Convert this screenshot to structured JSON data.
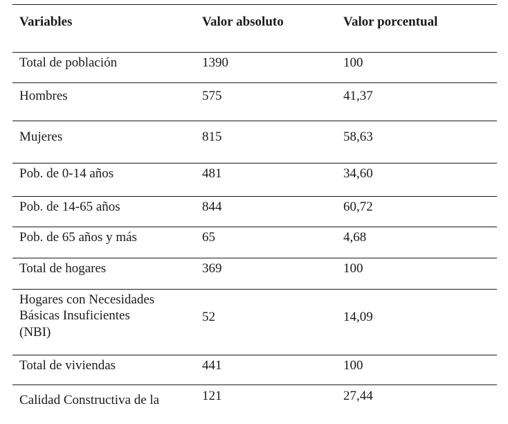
{
  "table": {
    "headers": [
      "Variables",
      "Valor absoluto",
      "Valor porcentual"
    ],
    "rows": [
      {
        "variable": "Total de población",
        "absoluto": "1390",
        "porcentual": "100"
      },
      {
        "variable": "Hombres",
        "absoluto": "575",
        "porcentual": "41,37"
      },
      {
        "variable": "Mujeres",
        "absoluto": "815",
        "porcentual": "58,63"
      },
      {
        "variable": "Pob. de 0-14 años",
        "absoluto": "481",
        "porcentual": "34,60"
      },
      {
        "variable": "Pob. de 14-65 años",
        "absoluto": "844",
        "porcentual": "60,72"
      },
      {
        "variable": "Pob. de 65 años y más",
        "absoluto": "65",
        "porcentual": "4,68"
      },
      {
        "variable": "Total de hogares",
        "absoluto": "369",
        "porcentual": "100"
      },
      {
        "variable_lines": [
          "Hogares con Necesidades",
          "Básicas Insuficientes",
          "(NBI)"
        ],
        "absoluto": "52",
        "porcentual": "14,09"
      },
      {
        "variable": "Total de viviendas",
        "absoluto": "441",
        "porcentual": "100"
      },
      {
        "variable": "Calidad Constructiva de la",
        "absoluto": "121",
        "porcentual": "27,44"
      }
    ]
  }
}
